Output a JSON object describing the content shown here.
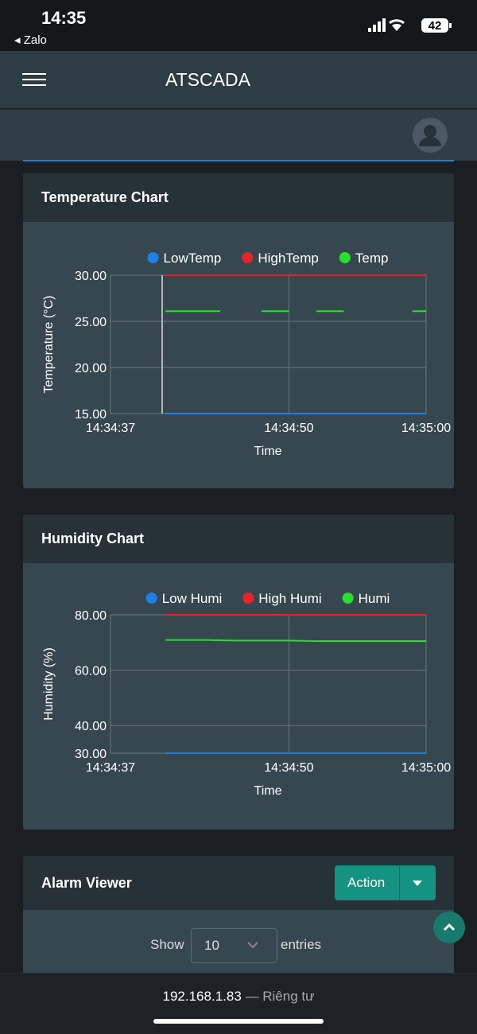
{
  "status_bar": {
    "time": "14:35",
    "back_app": "Zalo",
    "battery": "42"
  },
  "header": {
    "title": "ATSCADA"
  },
  "chart_data": [
    {
      "type": "line",
      "title": "Temperature Chart",
      "y_label": "Temperature (°C)",
      "x_label": "Time",
      "x": [
        "14:34:41",
        "14:34:42",
        "14:34:43",
        "14:34:44",
        "14:34:45",
        "14:34:46",
        "14:34:47",
        "14:34:48",
        "14:34:49",
        "14:34:50",
        "14:34:51",
        "14:34:52",
        "14:34:53",
        "14:34:54",
        "14:34:55",
        "14:34:56",
        "14:34:57",
        "14:34:58",
        "14:34:59",
        "14:35:00"
      ],
      "series": [
        {
          "name": "LowTemp",
          "color": "#1f7ee8",
          "values": [
            15,
            15,
            15,
            15,
            15,
            15,
            15,
            15,
            15,
            15,
            15,
            15,
            15,
            15,
            15,
            15,
            15,
            15,
            15,
            15
          ]
        },
        {
          "name": "HighTemp",
          "color": "#e8232b",
          "values": [
            30,
            30,
            30,
            30,
            30,
            30,
            30,
            30,
            30,
            30,
            30,
            30,
            30,
            30,
            30,
            30,
            30,
            30,
            30,
            30
          ]
        },
        {
          "name": "Temp",
          "color": "#27e02a",
          "values": [
            26.1,
            26.1,
            26.1,
            26.1,
            26.1,
            null,
            null,
            26.1,
            26.1,
            26.1,
            null,
            26.1,
            26.1,
            26.1,
            null,
            null,
            null,
            null,
            26.1,
            26.1
          ]
        }
      ],
      "ylim": [
        15,
        30
      ],
      "yticks": [
        {
          "value": 15,
          "label": "15.00"
        },
        {
          "value": 20,
          "label": "20.00"
        },
        {
          "value": 25,
          "label": "25.00"
        },
        {
          "value": 30,
          "label": "30.00"
        }
      ],
      "xlim": [
        "14:34:37",
        "14:35:00"
      ],
      "xticks": [
        "14:34:37",
        "14:34:50",
        "14:35:00"
      ],
      "grid": true
    },
    {
      "type": "line",
      "title": "Humidity Chart",
      "y_label": "Humidity (%)",
      "x_label": "Time",
      "x": [
        "14:34:41",
        "14:34:42",
        "14:34:43",
        "14:34:44",
        "14:34:45",
        "14:34:46",
        "14:34:47",
        "14:34:48",
        "14:34:49",
        "14:34:50",
        "14:34:51",
        "14:34:52",
        "14:34:53",
        "14:34:54",
        "14:34:55",
        "14:34:56",
        "14:34:57",
        "14:34:58",
        "14:34:59",
        "14:35:00"
      ],
      "series": [
        {
          "name": "Low Humi",
          "color": "#1f7ee8",
          "values": [
            30,
            30,
            30,
            30,
            30,
            30,
            30,
            30,
            30,
            30,
            30,
            30,
            30,
            30,
            30,
            30,
            30,
            30,
            30,
            30
          ]
        },
        {
          "name": "High Humi",
          "color": "#e8232b",
          "values": [
            80,
            80,
            80,
            80,
            80,
            80,
            80,
            80,
            80,
            80,
            80,
            80,
            80,
            80,
            80,
            80,
            80,
            80,
            80,
            80
          ]
        },
        {
          "name": "Humi",
          "color": "#27e02a",
          "values": [
            70.9,
            70.9,
            70.9,
            70.9,
            70.8,
            70.7,
            70.7,
            70.7,
            70.7,
            70.7,
            70.6,
            70.5,
            70.5,
            70.5,
            70.5,
            70.5,
            70.5,
            70.5,
            70.5,
            70.5
          ]
        }
      ],
      "ylim": [
        30,
        80
      ],
      "yticks": [
        {
          "value": 30,
          "label": "30.00"
        },
        {
          "value": 40,
          "label": "40.00"
        },
        {
          "value": 60,
          "label": "60.00"
        },
        {
          "value": 80,
          "label": "80.00"
        }
      ],
      "xlim": [
        "14:34:37",
        "14:35:00"
      ],
      "xticks": [
        "14:34:37",
        "14:34:50",
        "14:35:00"
      ],
      "grid": true
    }
  ],
  "alarm_viewer": {
    "title": "Alarm Viewer",
    "action": "Action",
    "show": "Show",
    "entries_value": "10",
    "entries": "entries"
  },
  "browser_bar": {
    "address": "192.168.1.83",
    "label": "— Riêng tư"
  }
}
